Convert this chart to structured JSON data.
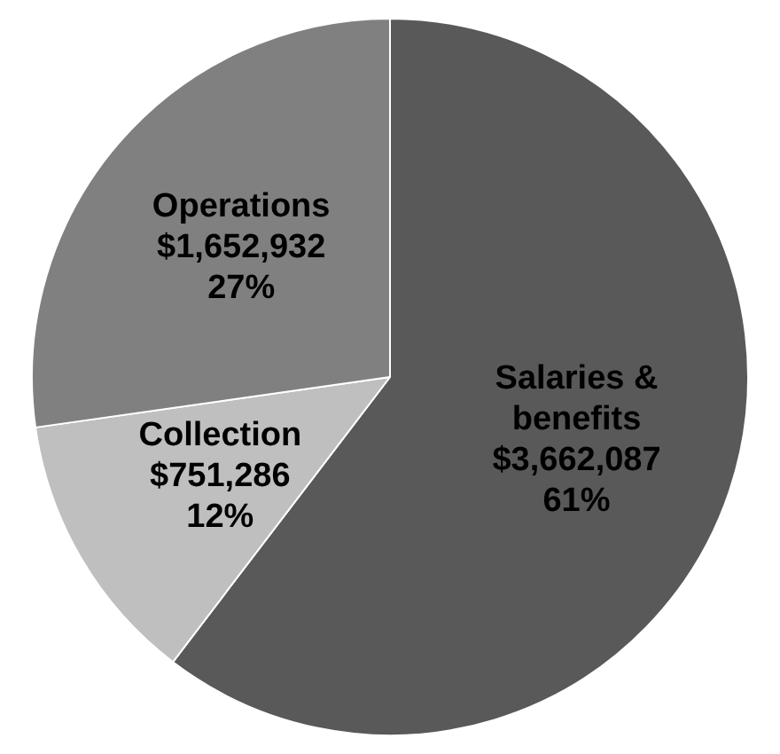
{
  "chart_data": {
    "type": "pie",
    "categories": [
      "Salaries & benefits",
      "Collection",
      "Operations"
    ],
    "values": [
      3662087,
      751286,
      1652932
    ],
    "colors": [
      "#595959",
      "#bfbfbf",
      "#808080"
    ],
    "value_labels": [
      "$3,662,087\n61%",
      "$751,286\n12%",
      "$1,652,932\n27%"
    ],
    "legend": false
  }
}
